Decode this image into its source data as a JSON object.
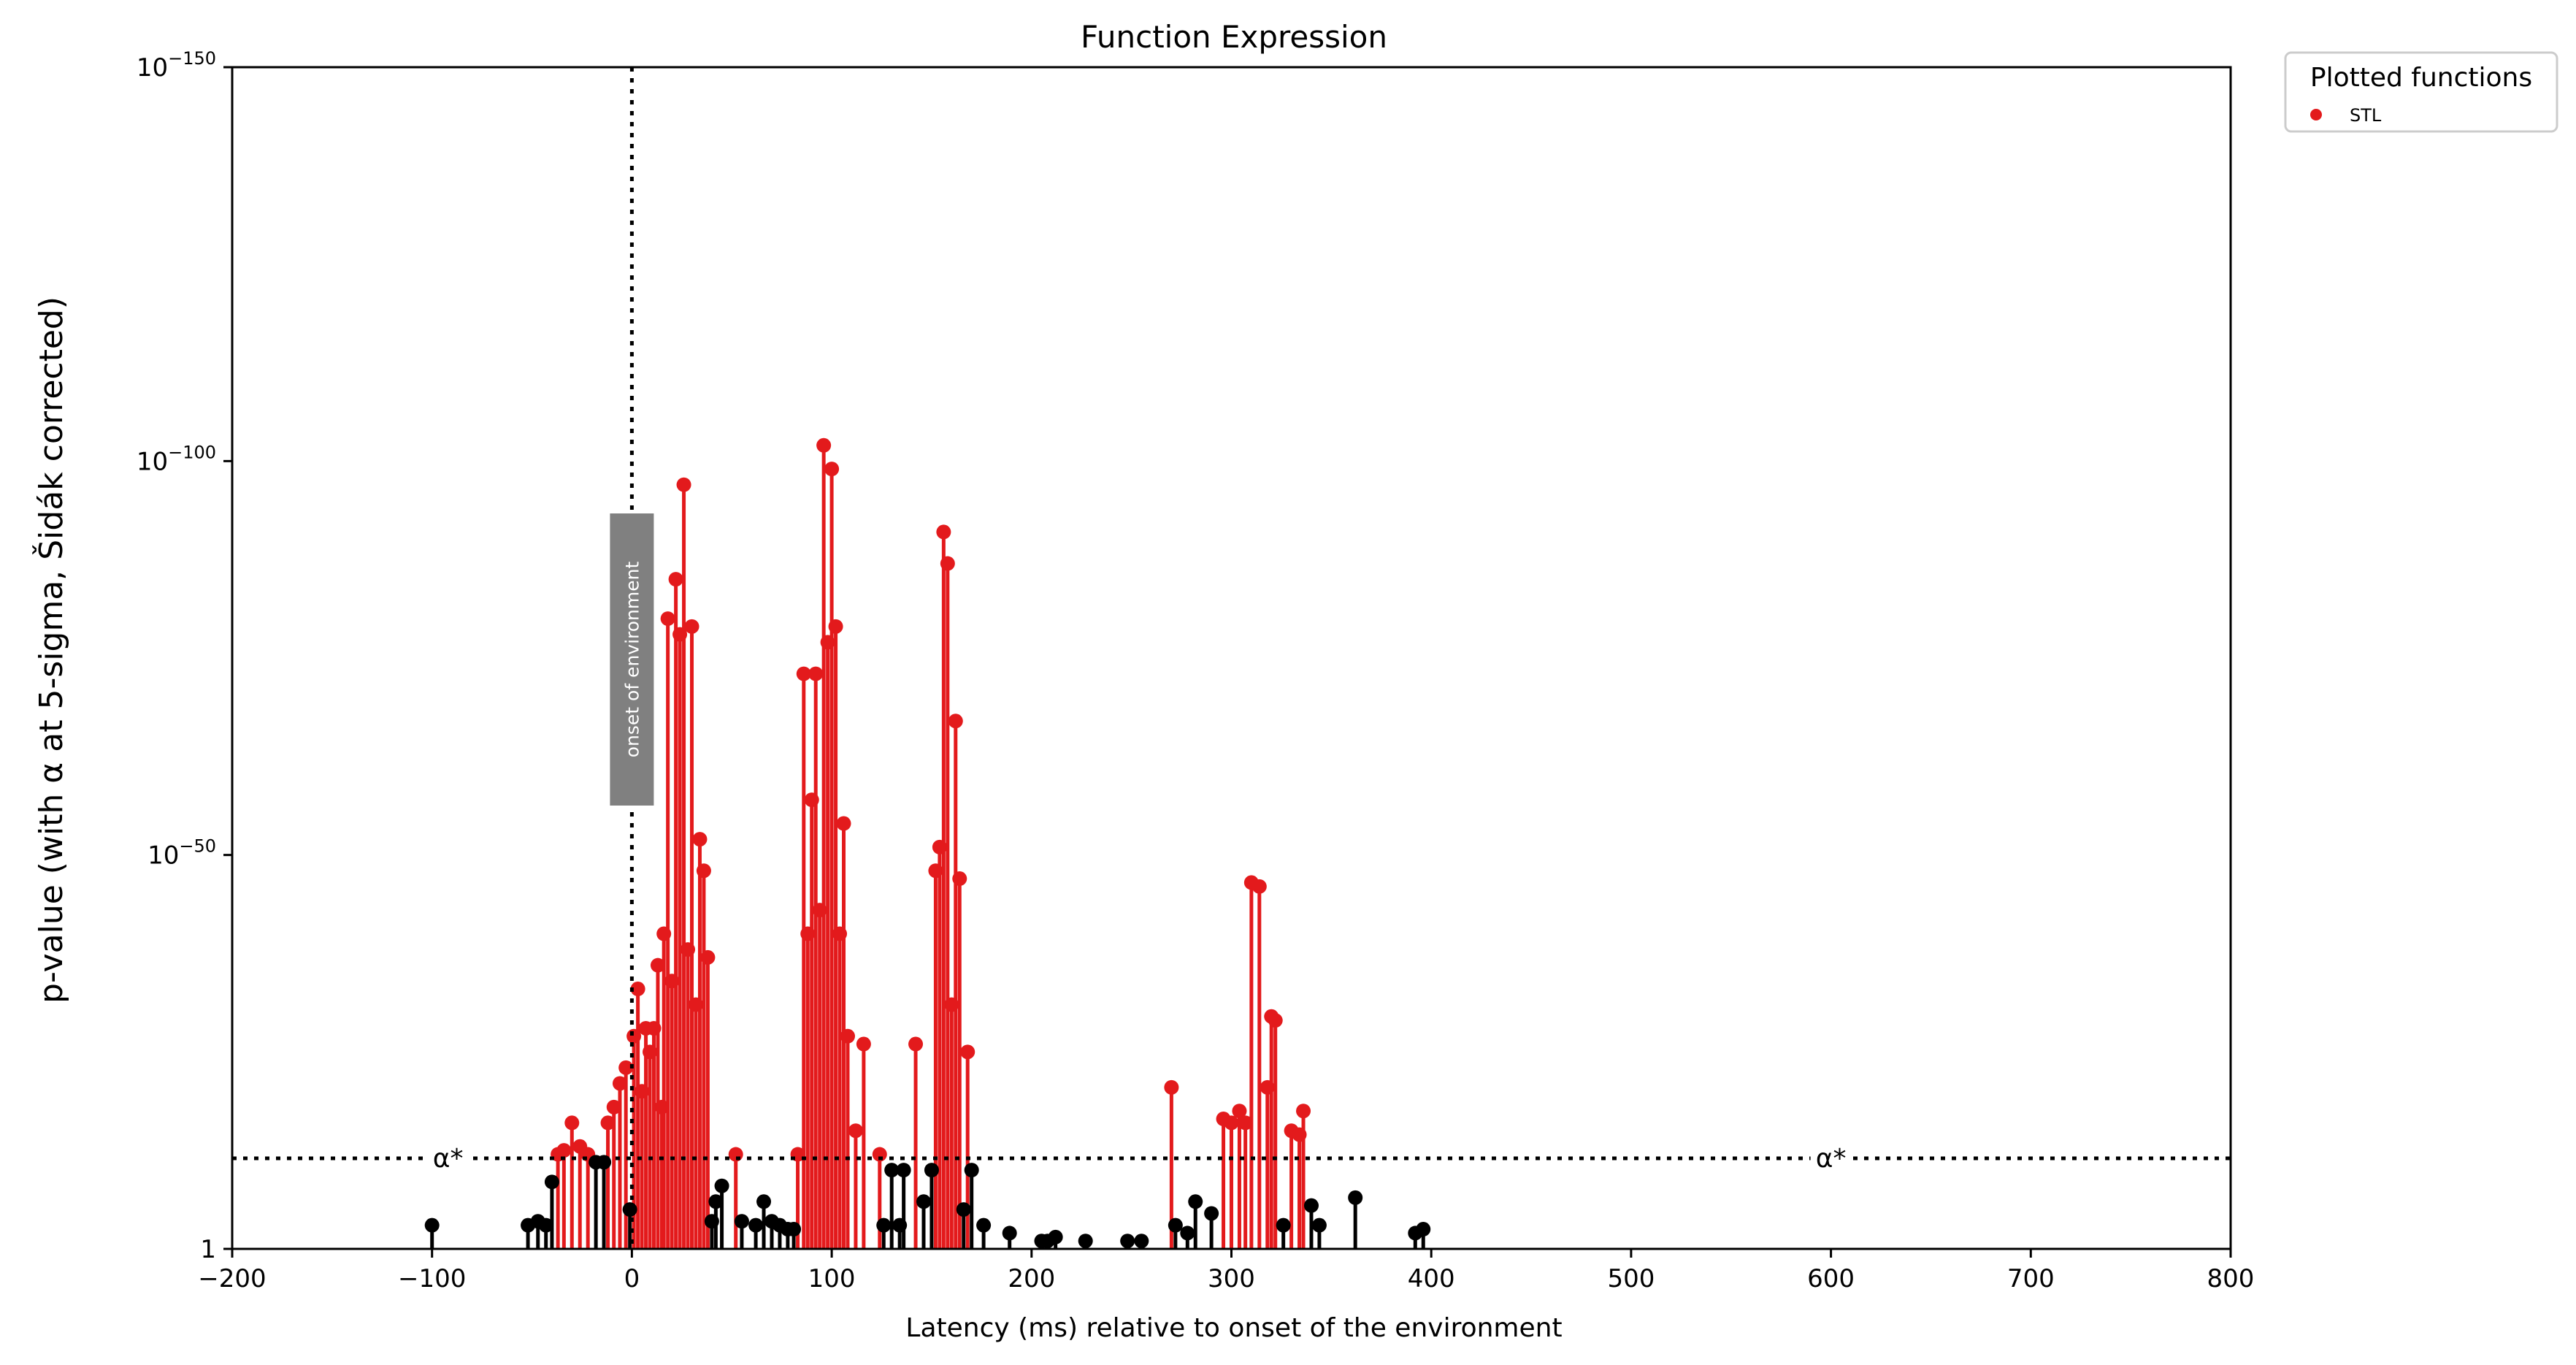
{
  "chart_data": {
    "type": "scatter",
    "title": "Function Expression",
    "xlabel": "Latency (ms) relative to onset of the environment",
    "ylabel": "p-value (with α at 5-sigma, Šidák corrected)",
    "xlim": [
      -200,
      800
    ],
    "x_ticks": [
      "−200",
      "−100",
      "0",
      "100",
      "200",
      "300",
      "400",
      "500",
      "600",
      "700",
      "800"
    ],
    "y_scale": "log (p-value exponent, inverted)",
    "ylim_exponent": [
      0,
      -150
    ],
    "y_ticks": [
      {
        "exp": 0,
        "base": "1",
        "sup": ""
      },
      {
        "exp": -50,
        "base": "10",
        "sup": "−50"
      },
      {
        "exp": -100,
        "base": "10",
        "sup": "−100"
      },
      {
        "exp": -150,
        "base": "10",
        "sup": "−150"
      }
    ],
    "alpha_threshold_exponent": -11.5,
    "alpha_label": "α*",
    "onset_line_x": 0,
    "onset_label": "onset of environment",
    "legend": {
      "title": "Plotted functions",
      "placement": "outside-top-right"
    },
    "series": [
      {
        "name": "STL",
        "color": "#e31a1c",
        "significant_color": "#e31a1c",
        "nonsignificant_color": "#000000",
        "points": [
          [
            -100,
            -3
          ],
          [
            -52,
            -3
          ],
          [
            -47,
            -3.5
          ],
          [
            -43,
            -3
          ],
          [
            -40,
            -8.5
          ],
          [
            -37,
            -12
          ],
          [
            -34,
            -12.5
          ],
          [
            -30,
            -16
          ],
          [
            -26,
            -13
          ],
          [
            -22,
            -12
          ],
          [
            -18,
            -11
          ],
          [
            -14,
            -11
          ],
          [
            -12,
            -16
          ],
          [
            -9,
            -18
          ],
          [
            -6,
            -21
          ],
          [
            -3,
            -23
          ],
          [
            -1,
            -5
          ],
          [
            1,
            -27
          ],
          [
            3,
            -33
          ],
          [
            5,
            -20
          ],
          [
            7,
            -28
          ],
          [
            9,
            -25
          ],
          [
            11,
            -28
          ],
          [
            13,
            -36
          ],
          [
            15,
            -18
          ],
          [
            16,
            -40
          ],
          [
            18,
            -80
          ],
          [
            20,
            -34
          ],
          [
            22,
            -85
          ],
          [
            24,
            -78
          ],
          [
            26,
            -97
          ],
          [
            28,
            -38
          ],
          [
            30,
            -79
          ],
          [
            32,
            -31
          ],
          [
            34,
            -52
          ],
          [
            36,
            -48
          ],
          [
            38,
            -37
          ],
          [
            40,
            -3.5
          ],
          [
            42,
            -6
          ],
          [
            45,
            -8
          ],
          [
            52,
            -12
          ],
          [
            55,
            -3.5
          ],
          [
            62,
            -3
          ],
          [
            66,
            -6
          ],
          [
            70,
            -3.5
          ],
          [
            74,
            -3
          ],
          [
            78,
            -2.5
          ],
          [
            81,
            -2.5
          ],
          [
            83,
            -12
          ],
          [
            86,
            -73
          ],
          [
            88,
            -40
          ],
          [
            90,
            -57
          ],
          [
            92,
            -73
          ],
          [
            94,
            -43
          ],
          [
            96,
            -102
          ],
          [
            98,
            -77
          ],
          [
            100,
            -99
          ],
          [
            102,
            -79
          ],
          [
            104,
            -40
          ],
          [
            106,
            -54
          ],
          [
            108,
            -27
          ],
          [
            112,
            -15
          ],
          [
            116,
            -26
          ],
          [
            124,
            -12
          ],
          [
            126,
            -3
          ],
          [
            130,
            -10
          ],
          [
            134,
            -3
          ],
          [
            136,
            -10
          ],
          [
            142,
            -26
          ],
          [
            146,
            -6
          ],
          [
            150,
            -10
          ],
          [
            152,
            -48
          ],
          [
            154,
            -51
          ],
          [
            156,
            -91
          ],
          [
            158,
            -87
          ],
          [
            160,
            -31
          ],
          [
            162,
            -67
          ],
          [
            164,
            -47
          ],
          [
            166,
            -5
          ],
          [
            168,
            -25
          ],
          [
            170,
            -10
          ],
          [
            176,
            -3
          ],
          [
            189,
            -2
          ],
          [
            205,
            -1
          ],
          [
            208,
            -1
          ],
          [
            212,
            -1.5
          ],
          [
            227,
            -1
          ],
          [
            248,
            -1
          ],
          [
            255,
            -1
          ],
          [
            270,
            -20.5
          ],
          [
            272,
            -3
          ],
          [
            278,
            -2
          ],
          [
            282,
            -6
          ],
          [
            290,
            -4.5
          ],
          [
            296,
            -16.5
          ],
          [
            300,
            -16
          ],
          [
            304,
            -17.5
          ],
          [
            307,
            -16
          ],
          [
            310,
            -46.5
          ],
          [
            314,
            -46
          ],
          [
            318,
            -20.5
          ],
          [
            320,
            -29.5
          ],
          [
            322,
            -29
          ],
          [
            326,
            -3
          ],
          [
            330,
            -15
          ],
          [
            334,
            -14.5
          ],
          [
            336,
            -17.5
          ],
          [
            340,
            -5.5
          ],
          [
            344,
            -3
          ],
          [
            362,
            -6.5
          ],
          [
            392,
            -2
          ],
          [
            396,
            -2.5
          ]
        ]
      }
    ]
  }
}
